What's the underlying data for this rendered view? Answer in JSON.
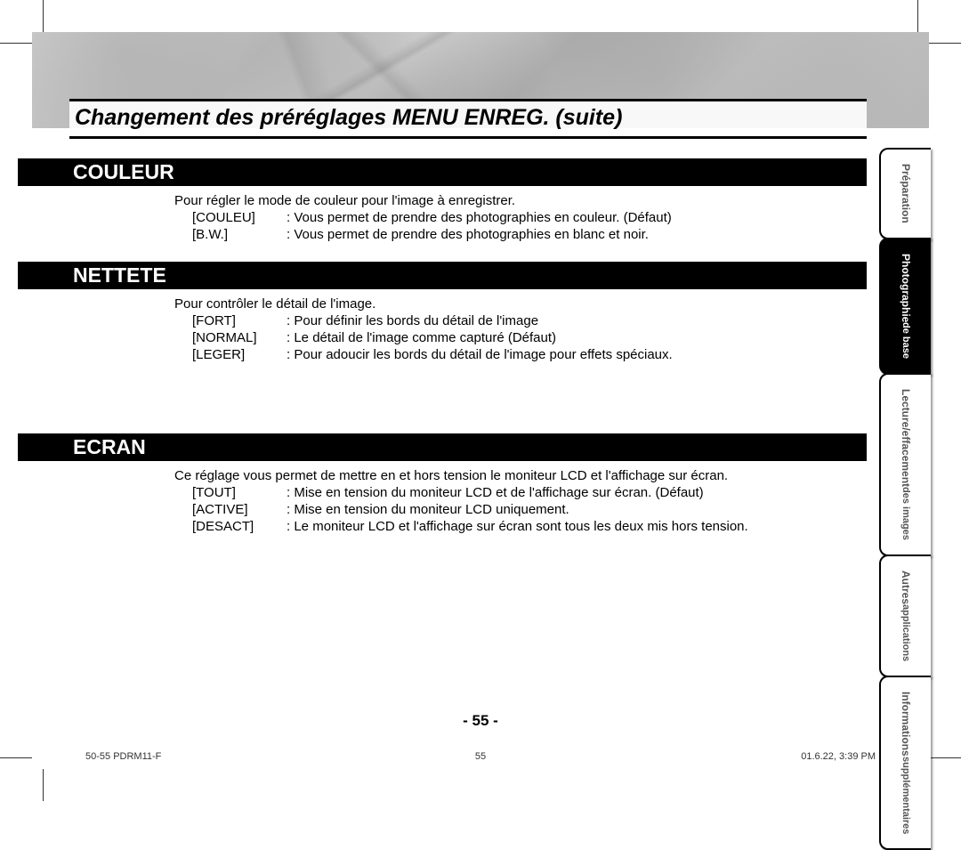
{
  "page_title": "Changement des préréglages MENU ENREG. (suite)",
  "sections": [
    {
      "heading": "COULEUR",
      "intro": "Pour régler le mode de couleur pour l'image à enregistrer.",
      "options": [
        {
          "label": "[COULEU]",
          "desc": "Vous permet de prendre des photographies en couleur. (Défaut)"
        },
        {
          "label": "[B.W.]",
          "desc": "Vous permet de prendre des photographies en blanc et noir."
        }
      ]
    },
    {
      "heading": "NETTETE",
      "intro": "Pour contrôler le détail de l'image.",
      "options": [
        {
          "label": "[FORT]",
          "desc": "Pour définir les bords du détail de l'image"
        },
        {
          "label": "[NORMAL]",
          "desc": "Le détail de l'image comme capturé (Défaut)"
        },
        {
          "label": "[LEGER]",
          "desc": "Pour adoucir les bords du détail de l'image pour effets spéciaux."
        }
      ]
    },
    {
      "heading": "ECRAN",
      "intro": "Ce réglage vous permet de mettre en et hors tension le moniteur LCD et l'affichage sur écran.",
      "options": [
        {
          "label": "[TOUT]",
          "desc": "Mise en tension du moniteur LCD et de l'affichage sur écran. (Défaut)"
        },
        {
          "label": "[ACTIVE]",
          "desc": "Mise en tension du moniteur LCD uniquement."
        },
        {
          "label": "[DESACT]",
          "desc": "Le moniteur LCD et l'affichage sur écran sont tous les deux mis hors tension."
        }
      ]
    }
  ],
  "tabs": [
    {
      "label": "Préparation",
      "active": false
    },
    {
      "label": "Photographie\nde base",
      "active": true
    },
    {
      "label": "Lecture/effacement\ndes images",
      "active": false
    },
    {
      "label": "Autres\napplications",
      "active": false
    },
    {
      "label": "Informations\nsupplémentaires",
      "active": false
    }
  ],
  "page_number": "- 55 -",
  "footer": {
    "left": "50-55 PDRM11-F",
    "mid": "55",
    "right": "01.6.22, 3:39 PM"
  },
  "section_gap_after": [
    12,
    80,
    0
  ]
}
